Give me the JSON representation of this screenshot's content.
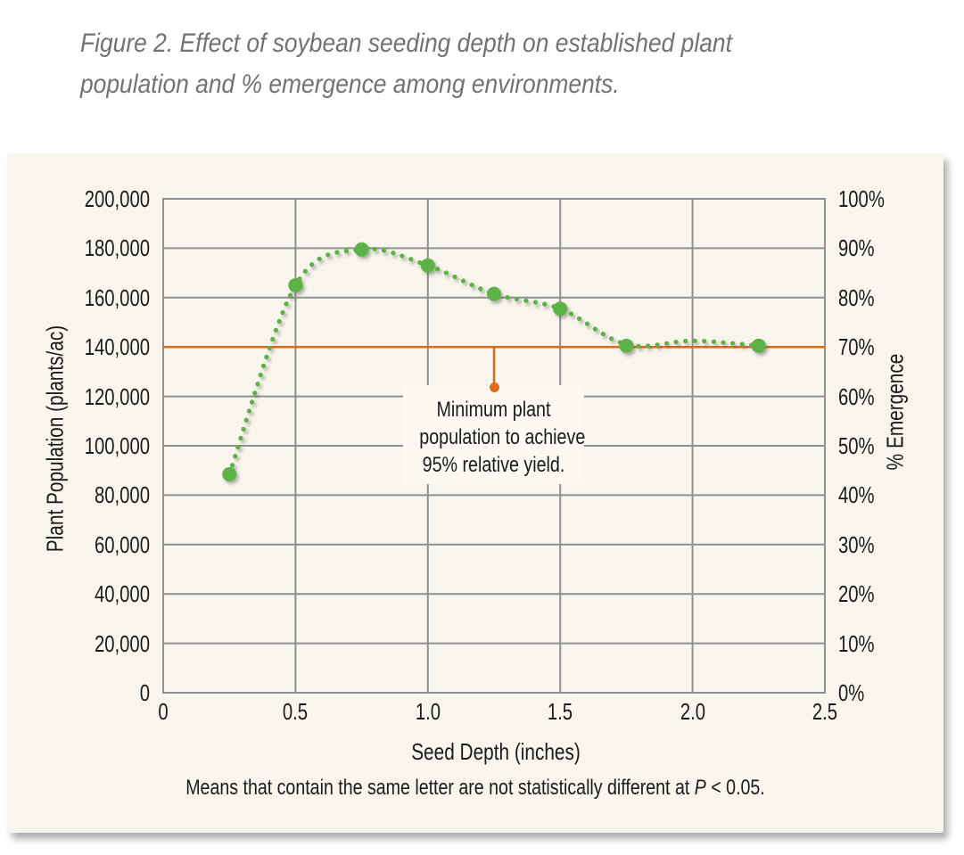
{
  "figure": {
    "title_line1": "Figure 2. Effect of soybean seeding depth on established plant",
    "title_line2": "population and % emergence among environments.",
    "footnote_prefix": "Means that contain the same letter are not statistically different at ",
    "footnote_p": "P",
    "footnote_suffix": " < 0.05."
  },
  "callout": {
    "line1": "Minimum plant",
    "line2": "population to achieve",
    "line3": "95% relative yield."
  },
  "chart_data": {
    "type": "scatter",
    "title": "Effect of soybean seeding depth on established plant population and % emergence among environments",
    "xlabel": "Seed Depth (inches)",
    "ylabel_left": "Plant Population (plants/ac)",
    "ylabel_right": "% Emergence",
    "xlim": [
      0,
      2.5
    ],
    "ylim_left": [
      0,
      200000
    ],
    "ylim_right": [
      0,
      100
    ],
    "grid": true,
    "x_ticks": [
      "0",
      "0.5",
      "1.0",
      "1.5",
      "2.0",
      "2.5"
    ],
    "y_left_ticks": [
      "0",
      "20,000",
      "40,000",
      "60,000",
      "80,000",
      "100,000",
      "120,000",
      "140,000",
      "160,000",
      "180,000",
      "200,000"
    ],
    "y_right_ticks": [
      "0%",
      "10%",
      "20%",
      "30%",
      "40%",
      "50%",
      "60%",
      "70%",
      "80%",
      "90%",
      "100%"
    ],
    "x": [
      0.25,
      0.5,
      0.75,
      1.0,
      1.25,
      1.5,
      1.75,
      2.25
    ],
    "series": [
      {
        "name": "Established plant population (plants/ac)",
        "values": [
          88500,
          165000,
          179500,
          173000,
          161500,
          155500,
          140500,
          140500
        ],
        "percent_emergence": [
          44.3,
          82.5,
          89.8,
          86.5,
          80.8,
          77.8,
          70.3,
          70.3
        ]
      }
    ],
    "trend": [
      [
        0.25,
        88500
      ],
      [
        0.5,
        165000
      ],
      [
        0.75,
        179500
      ],
      [
        1.0,
        173000
      ],
      [
        1.25,
        161500
      ],
      [
        1.5,
        155500
      ],
      [
        1.75,
        141000
      ],
      [
        2.0,
        142500
      ],
      [
        2.25,
        140500
      ]
    ],
    "reference_line": {
      "y": 140000,
      "y_percent": 70,
      "callout_x": 1.25,
      "callout_drop_to": 123500,
      "label": "Minimum plant population to achieve 95% relative yield."
    },
    "colors": {
      "series": "#5cb246",
      "reference": "#db6a1f",
      "gridline": "#8e9091",
      "panel_bg": "#f8f5ec",
      "callout_bg": "#fbf9f1",
      "title_text": "#6e7378"
    }
  }
}
